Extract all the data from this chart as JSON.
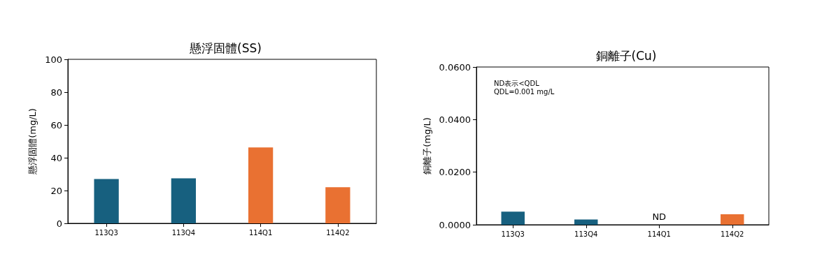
{
  "chart_data": [
    {
      "type": "bar",
      "title": "懸浮固體(SS)",
      "ylabel": "懸浮固體(mg/L)",
      "categories": [
        "113Q3",
        "113Q4",
        "114Q1",
        "114Q2"
      ],
      "values": [
        27.0,
        27.4,
        46.3,
        22.0
      ],
      "colors": [
        "#17607f",
        "#17607f",
        "#e97132",
        "#e97132"
      ],
      "ylim": [
        0,
        100
      ],
      "yticks": [
        0,
        20,
        40,
        60,
        80,
        100
      ],
      "grid": false
    },
    {
      "type": "bar",
      "title": "銅離子(Cu)",
      "ylabel": "銅離子(mg/L)",
      "categories": [
        "113Q3",
        "113Q4",
        "114Q1",
        "114Q2"
      ],
      "values": [
        0.005,
        0.002,
        null,
        0.004
      ],
      "colors": [
        "#17607f",
        "#17607f",
        "#17607f",
        "#e97132"
      ],
      "value_labels": [
        null,
        null,
        "ND",
        null
      ],
      "ylim": [
        0,
        0.06
      ],
      "yticks": [
        {
          "value": 0,
          "label": "0.0000"
        },
        {
          "value": 0.02,
          "label": "0.0200"
        },
        {
          "value": 0.04,
          "label": "0.0400"
        },
        {
          "value": 0.06,
          "label": "0.0600"
        }
      ],
      "annotations": [
        "ND表示<QDL",
        "QDL=0.001 mg/L"
      ],
      "grid": false
    }
  ]
}
